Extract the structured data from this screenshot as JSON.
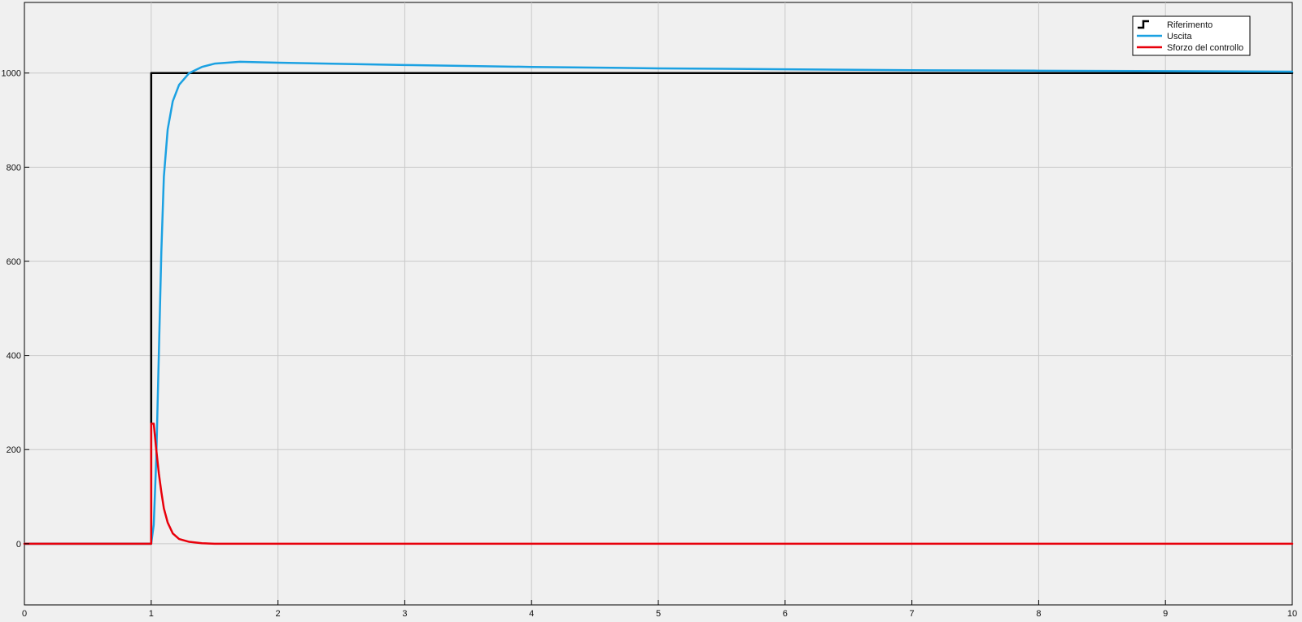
{
  "chart_data": {
    "type": "line",
    "title": "",
    "xlabel": "",
    "ylabel": "",
    "xlim": [
      0,
      10
    ],
    "ylim": [
      -130,
      1150
    ],
    "x_ticks": [
      0,
      1,
      2,
      3,
      4,
      5,
      6,
      7,
      8,
      9,
      10
    ],
    "y_ticks": [
      0,
      200,
      400,
      600,
      800,
      1000
    ],
    "grid": true,
    "legend_position": "top-right",
    "series": [
      {
        "name": "Riferimento",
        "color": "#000000",
        "style": "step",
        "points": [
          [
            0,
            0
          ],
          [
            1.0,
            0
          ],
          [
            1.0,
            1000
          ],
          [
            10,
            1000
          ]
        ]
      },
      {
        "name": "Uscita",
        "color": "#1ba1e2",
        "style": "line",
        "points": [
          [
            0,
            0
          ],
          [
            1.0,
            0
          ],
          [
            1.02,
            40
          ],
          [
            1.04,
            180
          ],
          [
            1.06,
            400
          ],
          [
            1.08,
            620
          ],
          [
            1.1,
            780
          ],
          [
            1.13,
            880
          ],
          [
            1.17,
            940
          ],
          [
            1.22,
            975
          ],
          [
            1.3,
            1000
          ],
          [
            1.4,
            1013
          ],
          [
            1.5,
            1020
          ],
          [
            1.7,
            1024
          ],
          [
            2.0,
            1022
          ],
          [
            3.0,
            1017
          ],
          [
            4.0,
            1013
          ],
          [
            5.0,
            1010
          ],
          [
            6.0,
            1008
          ],
          [
            7.0,
            1006
          ],
          [
            8.0,
            1005
          ],
          [
            9.0,
            1004
          ],
          [
            10.0,
            1003
          ]
        ]
      },
      {
        "name": "Sforzo del  controllo",
        "color": "#e8000b",
        "style": "line",
        "points": [
          [
            0,
            0
          ],
          [
            1.0,
            0
          ],
          [
            1.0,
            255
          ],
          [
            1.02,
            255
          ],
          [
            1.04,
            200
          ],
          [
            1.06,
            150
          ],
          [
            1.08,
            110
          ],
          [
            1.1,
            75
          ],
          [
            1.13,
            45
          ],
          [
            1.17,
            22
          ],
          [
            1.22,
            10
          ],
          [
            1.3,
            4
          ],
          [
            1.4,
            1
          ],
          [
            1.5,
            0
          ],
          [
            10,
            0
          ]
        ]
      }
    ]
  }
}
